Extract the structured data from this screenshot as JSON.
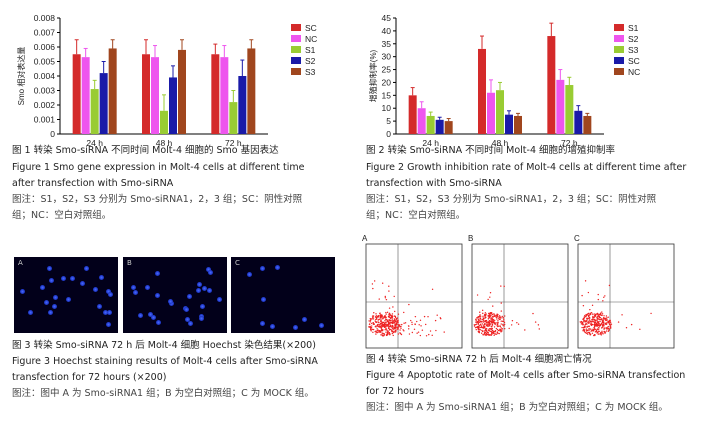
{
  "figure1": {
    "ylabel": "Smo 相对表达量",
    "caption_zh": "图 1    转染 Smo-siRNA 不同时间 Molt-4 细胞的 Smo 基因表达",
    "caption_en_1": "Figure 1    Smo gene expression in Molt-4 cells at different time",
    "caption_en_2": "after transfection with Smo-siRNA",
    "note_1": "图注：S1，S2，S3 分别为 Smo-siRNA1，2，3 组；SC：阴性对照",
    "note_2": "组；NC：空白对照组。"
  },
  "figure2": {
    "ylabel": "增殖抑制率(%)",
    "caption_zh": "图 2    转染 Smo-siRNA 不同时间 Molt-4 细胞的增殖抑制率",
    "caption_en_1": "Figure 2    Growth inhibition rate of Molt-4 cells at different time after",
    "caption_en_2": "transfection with Smo-siRNA",
    "note_1": "图注：S1，S2，S3 分别为 Smo-siRNA1，2，3 组；SC：阴性对照",
    "note_2": "组；NC：空白对照组。"
  },
  "figure3": {
    "panels": [
      "A",
      "B",
      "C"
    ],
    "caption_zh": "图 3    转染 Smo-siRNA 72 h 后 Molt-4 细胞 Hoechst 染色结果(×200)",
    "caption_en_1": "Figure 3    Hoechst staining results of Molt-4 cells after Smo-siRNA",
    "caption_en_2": "transfection for 72 hours (×200)",
    "note_1": "图注：图中 A 为 Smo-siRNA1 组；B 为空白对照组；C 为 MOCK 组。"
  },
  "figure4": {
    "panels": [
      "A",
      "B",
      "C"
    ],
    "caption_zh": "图 4    转染 Smo-siRNA 72 h 后 Molt-4 细胞凋亡情况",
    "caption_en_1": "Figure 4    Apoptotic rate of Molt-4 cells after Smo-siRNA transfection",
    "caption_en_2": "for 72 hours",
    "note_1": "图注：图中 A 为 Smo-siRNA1 组；B 为空白对照组；C 为 MOCK 组。"
  },
  "chart_data": [
    {
      "type": "bar",
      "categories": [
        "24 h",
        "48 h",
        "72 h"
      ],
      "ylabel": "Smo 相对表达量",
      "ylim": [
        0,
        0.008
      ],
      "yticks": [
        "0",
        "0.001",
        "0.002",
        "0.003",
        "0.004",
        "0.005",
        "0.006",
        "0.007",
        "0.008"
      ],
      "legend": "right",
      "series": [
        {
          "name": "SC",
          "color": "#d42a2a",
          "values": [
            0.0055,
            0.0055,
            0.0055
          ],
          "errors": [
            0.001,
            0.001,
            0.0007
          ]
        },
        {
          "name": "NC",
          "color": "#ee55ee",
          "values": [
            0.0053,
            0.0053,
            0.0053
          ],
          "errors": [
            0.0006,
            0.0008,
            0.0008
          ]
        },
        {
          "name": "S1",
          "color": "#99cc33",
          "values": [
            0.0031,
            0.0016,
            0.0022
          ],
          "errors": [
            0.0006,
            0.0011,
            0.0008
          ]
        },
        {
          "name": "S2",
          "color": "#1a1aa8",
          "values": [
            0.0042,
            0.0039,
            0.004
          ],
          "errors": [
            0.0008,
            0.0008,
            0.0011
          ]
        },
        {
          "name": "S3",
          "color": "#a0461e",
          "values": [
            0.0059,
            0.0058,
            0.0059
          ],
          "errors": [
            0.0006,
            0.0007,
            0.0006
          ]
        }
      ]
    },
    {
      "type": "bar",
      "categories": [
        "24 h",
        "48 h",
        "72 h"
      ],
      "ylabel": "增殖抑制率(%)",
      "ylim": [
        0,
        45
      ],
      "yticks": [
        "0",
        "5",
        "10",
        "15",
        "20",
        "25",
        "30",
        "35",
        "40",
        "45"
      ],
      "legend": "right",
      "series": [
        {
          "name": "S1",
          "color": "#d42a2a",
          "values": [
            15,
            33,
            38
          ],
          "errors": [
            3,
            5,
            5
          ]
        },
        {
          "name": "S2",
          "color": "#ee55ee",
          "values": [
            10,
            16,
            21
          ],
          "errors": [
            2.5,
            5,
            4
          ]
        },
        {
          "name": "S3",
          "color": "#99cc33",
          "values": [
            7,
            17,
            19
          ],
          "errors": [
            1.5,
            3,
            3
          ]
        },
        {
          "name": "SC",
          "color": "#1a1aa8",
          "values": [
            5.5,
            7.5,
            9
          ],
          "errors": [
            1,
            1.5,
            2
          ]
        },
        {
          "name": "NC",
          "color": "#a0461e",
          "values": [
            5,
            7,
            7
          ],
          "errors": [
            1,
            1,
            1
          ]
        }
      ]
    }
  ]
}
